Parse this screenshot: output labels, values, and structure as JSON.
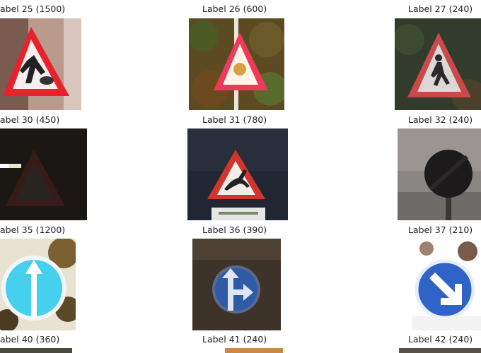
{
  "grid": {
    "items": [
      {
        "label": "abel 25 (1500)"
      },
      {
        "label": "Label 26 (600)"
      },
      {
        "label": "Label 27 (240)"
      },
      {
        "label": "abel 30 (450)"
      },
      {
        "label": "Label 31 (780)"
      },
      {
        "label": "Label 32 (240)"
      },
      {
        "label": "abel 35 (1200)"
      },
      {
        "label": "Label 36 (390)"
      },
      {
        "label": "Label 37 (210)"
      },
      {
        "label": "abel 40 (360)"
      },
      {
        "label": "Label 41 (240)"
      },
      {
        "label": "Label 42 (240)"
      }
    ]
  },
  "icons": [
    "road-works-sign-icon",
    "warning-triangle-sign-icon",
    "pedestrians-sign-icon",
    "dark-warning-sign-icon",
    "wild-animals-sign-icon",
    "end-of-restrictions-sign-icon",
    "ahead-only-sign-icon",
    "straight-or-right-sign-icon",
    "keep-right-sign-icon"
  ]
}
